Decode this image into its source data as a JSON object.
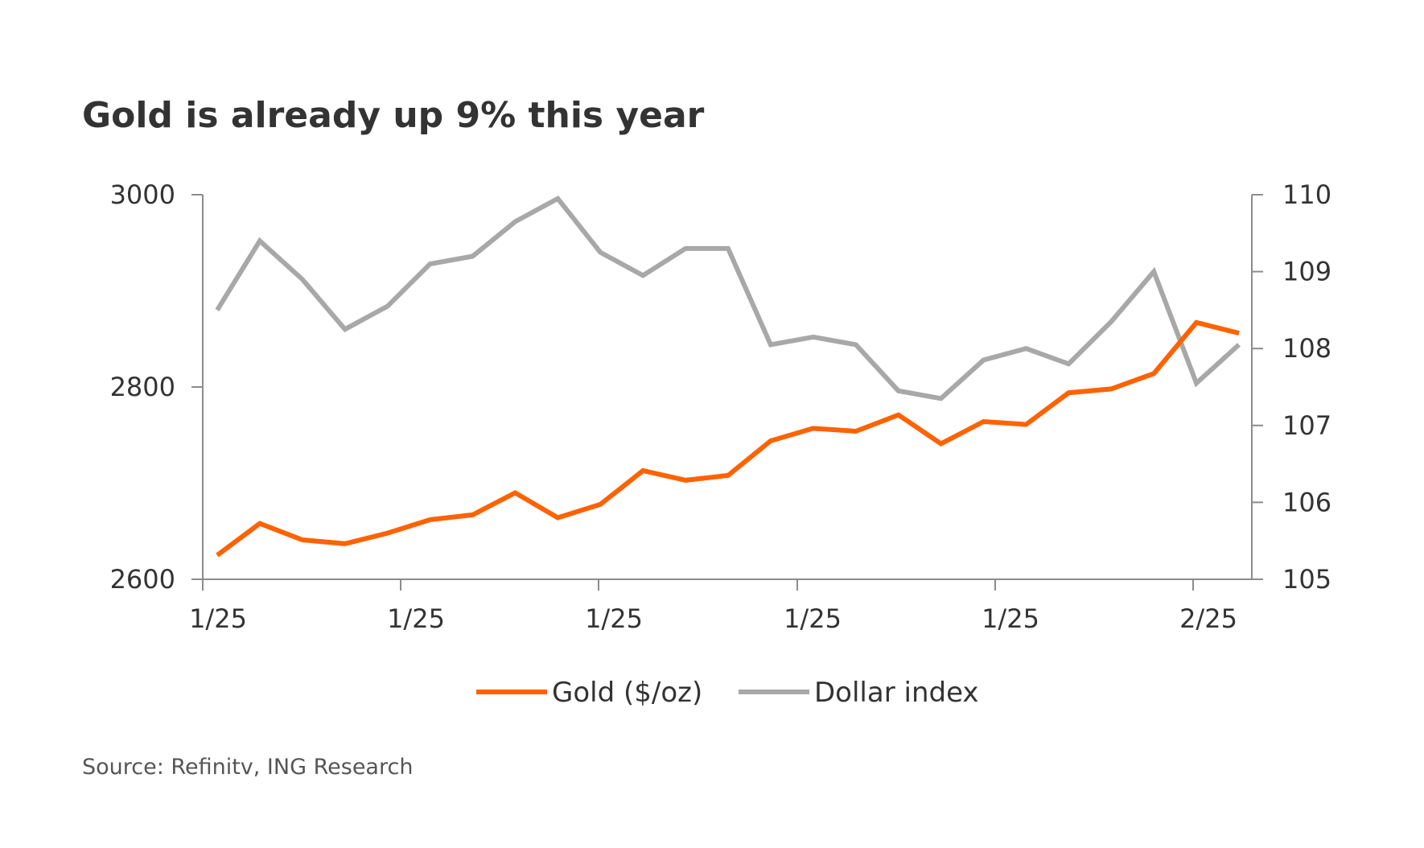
{
  "title": "Gold is already up 9% this year",
  "source": "Source: Refinitv, ING Research",
  "colors": {
    "gold": "#ff6200",
    "dollar": "#a8a8a8",
    "axis": "#8c8c8c",
    "text": "#333333"
  },
  "chart_data": {
    "type": "line",
    "title": "Gold is already up 9% this year",
    "x_tick_labels": [
      "1/25",
      "1/25",
      "1/25",
      "1/25",
      "1/25",
      "2/25"
    ],
    "y_left": {
      "ticks": [
        2600,
        2800,
        3000
      ],
      "ylim": [
        2600,
        3000
      ]
    },
    "y_right": {
      "ticks": [
        105,
        106,
        107,
        108,
        109,
        110
      ],
      "ylim": [
        105,
        110
      ]
    },
    "legend_position": "bottom-center",
    "grid": false,
    "series": [
      {
        "name": "Gold ($/oz)",
        "axis": "left",
        "color": "#ff6200",
        "values": [
          2625,
          2658,
          2641,
          2637,
          2648,
          2662,
          2667,
          2690,
          2664,
          2678,
          2713,
          2703,
          2708,
          2744,
          2757,
          2754,
          2771,
          2741,
          2764,
          2761,
          2794,
          2798,
          2814,
          2867,
          2856
        ]
      },
      {
        "name": "Dollar index",
        "axis": "right",
        "color": "#a8a8a8",
        "values": [
          108.5,
          109.4,
          108.9,
          108.25,
          108.55,
          109.1,
          109.2,
          109.65,
          109.95,
          109.25,
          108.95,
          109.3,
          109.3,
          108.05,
          108.15,
          108.05,
          107.45,
          107.35,
          107.85,
          108.0,
          107.8,
          108.35,
          109.0,
          107.55,
          108.05
        ]
      }
    ]
  }
}
